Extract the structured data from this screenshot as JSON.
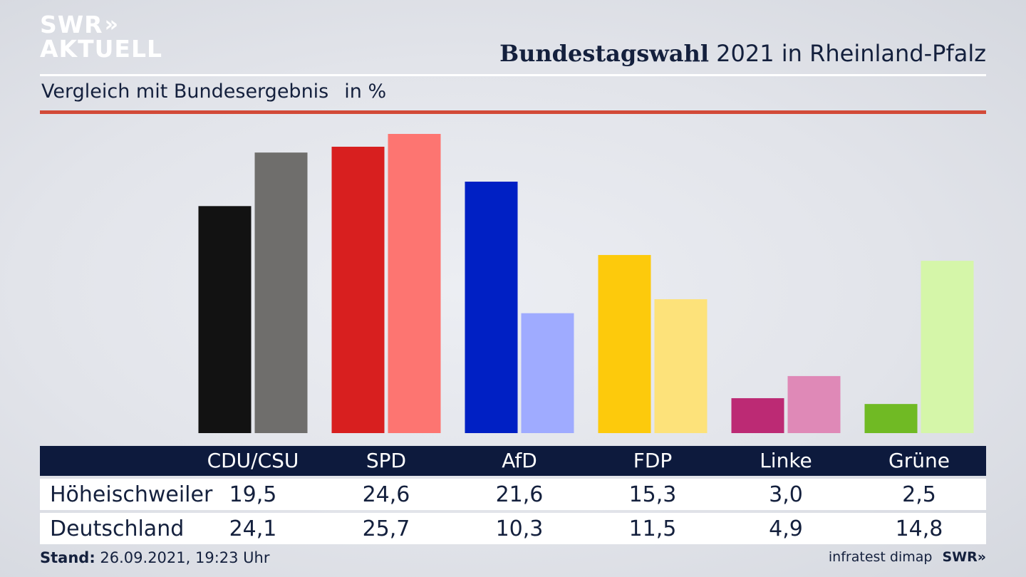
{
  "logo": {
    "line1": "SWR",
    "arrows": "»",
    "line2": "AKTUELL"
  },
  "header": {
    "title_bold": "Bundestagswahl",
    "title_rest": " 2021 in Rheinland-Pfalz"
  },
  "subtitle": {
    "text": "Vergleich mit Bundesergebnis",
    "unit": "in %"
  },
  "chart_data": {
    "type": "bar",
    "title": "Bundestagswahl 2021 in Rheinland-Pfalz",
    "subtitle": "Vergleich mit Bundesergebnis",
    "unit": "in %",
    "categories": [
      "CDU/CSU",
      "SPD",
      "AfD",
      "FDP",
      "Linke",
      "Grüne"
    ],
    "series": [
      {
        "name": "Höheischweiler",
        "values": [
          19.5,
          24.6,
          21.6,
          15.3,
          3.0,
          2.5
        ],
        "colors": [
          "#121212",
          "#d81f1f",
          "#0020c4",
          "#fdca0c",
          "#bc2a74",
          "#70ba24"
        ]
      },
      {
        "name": "Deutschland",
        "values": [
          24.1,
          25.7,
          10.3,
          11.5,
          4.9,
          14.8
        ],
        "colors": [
          "#6f6e6c",
          "#fd7571",
          "#9fabff",
          "#fde27a",
          "#df89b7",
          "#d5f6a9"
        ]
      }
    ],
    "value_labels": [
      [
        "19,5",
        "24,6",
        "21,6",
        "15,3",
        "3,0",
        "2,5"
      ],
      [
        "24,1",
        "25,7",
        "10,3",
        "11,5",
        "4,9",
        "14,8"
      ]
    ],
    "ylim": [
      0,
      25.7
    ],
    "grid": false,
    "legend": "table below chart"
  },
  "footer": {
    "stand_label": "Stand:",
    "stand_value": " 26.09.2021, 19:23 Uhr",
    "source": "infratest dimap",
    "brand": "SWR»"
  }
}
